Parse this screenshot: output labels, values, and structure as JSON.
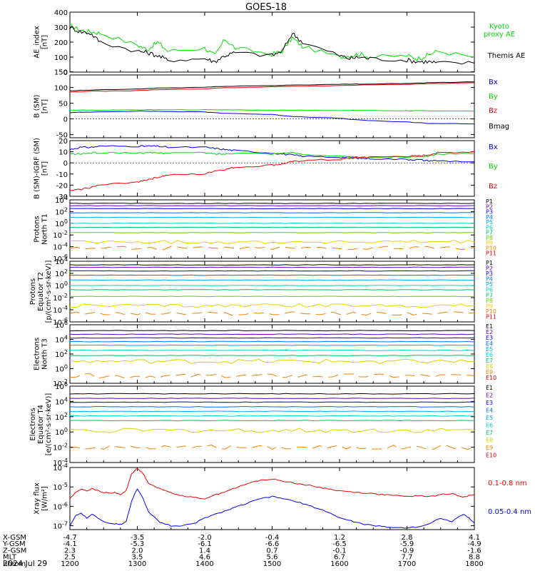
{
  "title": "GOES-18",
  "date": "2024 Jul 29",
  "colors": {
    "black": "#000000",
    "green": "#00dd00",
    "blue": "#0000ee",
    "red": "#ee0000",
    "P": [
      "#000000",
      "#6a00a8",
      "#0000ee",
      "#0070ff",
      "#00a8f0",
      "#00d0c0",
      "#00c060",
      "#60d000",
      "#e8d000",
      "#f08000",
      "#ee0000",
      "#cc0000"
    ],
    "E": [
      "#000000",
      "#6a00a8",
      "#0000ee",
      "#0070ff",
      "#00a8f0",
      "#00d0c0",
      "#00c060",
      "#d8d000",
      "#f08000",
      "#cc0000",
      "#ee0000"
    ]
  },
  "chart_data": [
    {
      "type": "line",
      "ylabel": [
        "AE_index",
        "[nT]"
      ],
      "ylim": [
        0,
        400
      ],
      "yticks": [
        "400",
        "300",
        "200",
        "100",
        "0"
      ],
      "xticks": [
        "1200",
        "1300",
        "1400",
        "1500",
        "1600",
        "1700",
        "1800"
      ],
      "x": [
        1200,
        1215,
        1230,
        1245,
        1300,
        1315,
        1330,
        1345,
        1400,
        1415,
        1430,
        1445,
        1500,
        1515,
        1530,
        1545,
        1600,
        1615,
        1630,
        1645,
        1700,
        1715,
        1730,
        1745,
        1800
      ],
      "series": [
        {
          "name": "Kyoto proxy AE",
          "label_lines": [
            "Kyoto",
            "proxy AE"
          ],
          "color": "green",
          "values": [
            310,
            280,
            270,
            260,
            180,
            150,
            200,
            140,
            160,
            110,
            220,
            160,
            120,
            140,
            230,
            170,
            100,
            110,
            120,
            100,
            110,
            90,
            110,
            140,
            100
          ]
        },
        {
          "name": "Themis AE",
          "label_lines": [
            "Themis AE"
          ],
          "color": "black",
          "values": [
            300,
            270,
            260,
            200,
            140,
            130,
            110,
            80,
            90,
            70,
            110,
            130,
            110,
            140,
            260,
            200,
            110,
            90,
            100,
            90,
            80,
            70,
            70,
            60,
            60
          ]
        }
      ]
    },
    {
      "type": "line",
      "ylabel": [
        "B (SM)",
        "[nT]"
      ],
      "ylim": [
        -60,
        140
      ],
      "yticks": [
        "150",
        "100",
        "50",
        "0",
        "-50"
      ],
      "x": [
        1200,
        1230,
        1300,
        1330,
        1400,
        1430,
        1500,
        1530,
        1600,
        1630,
        1700,
        1730,
        1800
      ],
      "series": [
        {
          "name": "Bx",
          "color": "blue",
          "values": [
            20,
            22,
            25,
            24,
            22,
            18,
            14,
            8,
            2,
            -4,
            -10,
            -14,
            -16
          ]
        },
        {
          "name": "By",
          "color": "green",
          "values": [
            28,
            28,
            29,
            29,
            29,
            29,
            28,
            28,
            27,
            27,
            26,
            26,
            25
          ]
        },
        {
          "name": "Bz",
          "color": "red",
          "values": [
            85,
            88,
            90,
            93,
            96,
            99,
            102,
            104,
            106,
            108,
            110,
            112,
            115
          ]
        },
        {
          "name": "Bmag",
          "color": "black",
          "values": [
            89,
            92,
            95,
            98,
            101,
            104,
            106,
            108,
            110,
            111,
            113,
            115,
            118
          ]
        }
      ]
    },
    {
      "type": "line",
      "ylabel": [
        "B (SM)-IGRF (SM)",
        "[nT]"
      ],
      "ylim": [
        -30,
        20
      ],
      "yticks": [
        "20",
        "10",
        "0",
        "-10",
        "-20",
        "-30"
      ],
      "x": [
        1200,
        1215,
        1230,
        1245,
        1300,
        1315,
        1330,
        1345,
        1400,
        1415,
        1430,
        1445,
        1500,
        1515,
        1530,
        1545,
        1600,
        1615,
        1630,
        1645,
        1700,
        1715,
        1730,
        1745,
        1800
      ],
      "series": [
        {
          "name": "Bx",
          "color": "blue",
          "values": [
            12,
            14,
            14,
            15,
            15,
            15,
            15,
            14,
            14,
            13,
            12,
            11,
            9,
            8,
            7,
            6,
            5,
            5,
            4,
            4,
            3,
            3,
            2,
            2,
            1
          ]
        },
        {
          "name": "By",
          "color": "green",
          "values": [
            8,
            8,
            9,
            9,
            9,
            9,
            9,
            9,
            9,
            8,
            8,
            9,
            8,
            9,
            9,
            8,
            6,
            5,
            5,
            5,
            5,
            6,
            6,
            8,
            8
          ]
        },
        {
          "name": "Bz",
          "color": "red",
          "values": [
            -25,
            -24,
            -22,
            -20,
            -17,
            -15,
            -13,
            -11,
            -10,
            -7,
            -6,
            -4,
            -2,
            -1,
            1,
            2,
            3,
            4,
            5,
            5,
            6,
            6,
            7,
            9,
            10
          ]
        }
      ]
    },
    {
      "type": "line",
      "scale": "log",
      "ylabel": [
        "Protons",
        "North T1"
      ],
      "ylim_exp": [
        -6,
        4
      ],
      "yticks": [
        {
          "m": "10",
          "e": "4"
        },
        {
          "m": "10",
          "e": "2"
        },
        {
          "m": "10",
          "e": "0"
        },
        {
          "m": "10",
          "e": "-2"
        },
        {
          "m": "10",
          "e": "-4"
        },
        {
          "m": "10",
          "e": "-6"
        }
      ],
      "channels": [
        "P1",
        "P2",
        "P3",
        "P4",
        "P5",
        "P6",
        "P7",
        "P8",
        "P9",
        "P10",
        "P11"
      ],
      "levels": [
        3.4,
        3.0,
        2.5,
        1.8,
        1.0,
        0.0,
        -0.7,
        -1.6,
        -3.2,
        -4.2,
        -9
      ]
    },
    {
      "type": "line",
      "scale": "log",
      "ylabel": [
        "Protons",
        "Equator T2",
        "[p/(cm²-s-sr-keV)]"
      ],
      "ylim_exp": [
        -6,
        4
      ],
      "yticks": [
        {
          "m": "10",
          "e": "4"
        },
        {
          "m": "10",
          "e": "2"
        },
        {
          "m": "10",
          "e": "0"
        },
        {
          "m": "10",
          "e": "-2"
        },
        {
          "m": "10",
          "e": "-4"
        },
        {
          "m": "10",
          "e": "-6"
        }
      ],
      "channels": [
        "P1",
        "P2",
        "P3",
        "P4",
        "P5",
        "P6",
        "P7",
        "P8",
        "P9",
        "P10",
        "P11"
      ],
      "levels": [
        3.4,
        3.0,
        2.4,
        1.7,
        0.9,
        0.0,
        -0.7,
        -1.8,
        -3.3,
        -4.6,
        -9
      ]
    },
    {
      "type": "line",
      "scale": "log",
      "ylabel": [
        "Electrons",
        "North T3"
      ],
      "ylim_exp": [
        -2,
        6
      ],
      "yticks": [
        {
          "m": "10",
          "e": "6"
        },
        {
          "m": "10",
          "e": "4"
        },
        {
          "m": "10",
          "e": "2"
        },
        {
          "m": "10",
          "e": "0"
        },
        {
          "m": "10",
          "e": "-2"
        }
      ],
      "channels": [
        "E1",
        "E2",
        "E3",
        "E4",
        "E5",
        "E6",
        "E7",
        "E8",
        "E9",
        "E10"
      ],
      "levels": [
        5.2,
        4.7,
        4.2,
        3.7,
        3.2,
        2.5,
        1.8,
        1.0,
        -1.0,
        -9
      ]
    },
    {
      "type": "line",
      "scale": "log",
      "ylabel": [
        "Electrons",
        "Equator T4",
        "[e/(cm²-s-sr-keV)]"
      ],
      "ylim_exp": [
        -4,
        6
      ],
      "yticks": [
        {
          "m": "10",
          "e": "6"
        },
        {
          "m": "10",
          "e": "4"
        },
        {
          "m": "10",
          "e": "2"
        },
        {
          "m": "10",
          "e": "0"
        },
        {
          "m": "10",
          "e": "-2"
        },
        {
          "m": "10",
          "e": "-4"
        }
      ],
      "channels": [
        "E1",
        "E2",
        "E3",
        "E4",
        "E5",
        "E6",
        "E7",
        "E8",
        "E9",
        "E10"
      ],
      "levels": [
        5.0,
        4.4,
        3.9,
        3.3,
        2.7,
        2.1,
        1.5,
        0.2,
        -2.0,
        -9
      ]
    },
    {
      "type": "line",
      "scale": "log",
      "ylabel": [
        "Xray flux",
        "[W/m²]"
      ],
      "ylim_exp": [
        -7.2,
        -4
      ],
      "yticks": [
        {
          "m": "10",
          "e": "-4"
        },
        {
          "m": "10",
          "e": "-5"
        },
        {
          "m": "10",
          "e": "-6"
        },
        {
          "m": "10",
          "e": "-7"
        }
      ],
      "x": [
        1200,
        1205,
        1210,
        1215,
        1220,
        1230,
        1240,
        1245,
        1250,
        1255,
        1300,
        1305,
        1310,
        1320,
        1330,
        1340,
        1350,
        1400,
        1410,
        1420,
        1430,
        1440,
        1450,
        1500,
        1510,
        1520,
        1530,
        1540,
        1550,
        1600,
        1610,
        1620,
        1630,
        1640,
        1650,
        1700,
        1710,
        1720,
        1730,
        1740,
        1750,
        1755,
        1800
      ],
      "series": [
        {
          "name": "0.1-0.8 nm",
          "color": "red",
          "values": [
            -5.6,
            -5.3,
            -5.1,
            -5.2,
            -5.1,
            -5.3,
            -5.3,
            -5.4,
            -5.2,
            -4.3,
            -4.05,
            -4.3,
            -4.8,
            -5.1,
            -5.3,
            -5.45,
            -5.55,
            -5.6,
            -5.4,
            -5.2,
            -5.0,
            -4.8,
            -4.65,
            -4.6,
            -4.7,
            -4.8,
            -4.9,
            -5.0,
            -5.1,
            -5.2,
            -5.25,
            -5.3,
            -5.35,
            -5.4,
            -5.45,
            -5.5,
            -5.45,
            -5.5,
            -5.4,
            -5.35,
            -5.5,
            -5.45,
            -5.4
          ]
        },
        {
          "name": "0.05-0.4 nm",
          "color": "blue",
          "values": [
            -7.0,
            -6.5,
            -6.35,
            -6.6,
            -6.4,
            -6.8,
            -6.9,
            -6.95,
            -6.8,
            -5.7,
            -5.1,
            -5.6,
            -6.3,
            -6.8,
            -7.0,
            -7.0,
            -6.9,
            -6.6,
            -6.4,
            -6.2,
            -6.0,
            -5.8,
            -5.6,
            -5.5,
            -5.6,
            -5.75,
            -5.9,
            -6.1,
            -6.3,
            -6.6,
            -6.75,
            -6.9,
            -7.0,
            -7.05,
            -7.1,
            -7.1,
            -7.05,
            -6.9,
            -6.6,
            -6.8,
            -6.4,
            -6.6,
            -6.85
          ]
        }
      ]
    }
  ],
  "legend_extra": {
    "xray": [
      "0.1-0.8 nm",
      "0.05-0.4 nm"
    ]
  },
  "ephemeris": {
    "rows": [
      {
        "label": "X-GSM",
        "values": [
          "-4.7",
          "-3.5",
          "-2.0",
          "-0.4",
          "1.2",
          "2.8",
          "4.1"
        ]
      },
      {
        "label": "Y-GSM",
        "values": [
          "-4.1",
          "-5.3",
          "-6.1",
          "-6.6",
          "-6.5",
          "-5.9",
          "-4.9"
        ]
      },
      {
        "label": "Z-GSM",
        "values": [
          "2.3",
          "2.0",
          "1.4",
          "0.7",
          "-0.1",
          "-0.9",
          "-1.6"
        ]
      },
      {
        "label": "MLT",
        "values": [
          "2.5",
          "3.5",
          "4.6",
          "5.6",
          "6.7",
          "7.7",
          "8.8"
        ]
      },
      {
        "label": "hhmm",
        "values": [
          "1200",
          "1300",
          "1400",
          "1500",
          "1600",
          "1700",
          "1800"
        ]
      }
    ]
  }
}
